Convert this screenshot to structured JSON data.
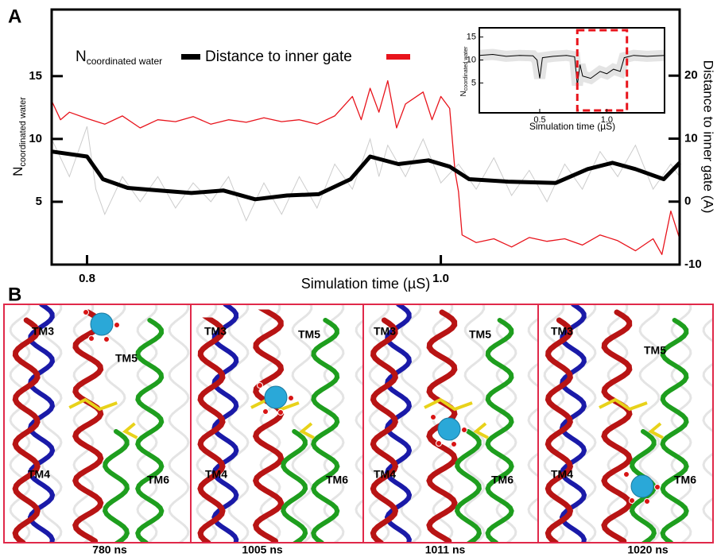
{
  "chart_data": {
    "type": "line",
    "panel_label": "A",
    "xlabel": "Simulation time (µS)",
    "ylabel": "N",
    "ylabel_sub": "coordinated water",
    "y2label": "Distance to inner gate (A)",
    "xlim": [
      0.78,
      1.135
    ],
    "xticks": [
      0.8,
      {
        "value": 1,
        "label": "1.0"
      }
    ],
    "ylim": [
      0,
      20.3
    ],
    "yticks": [
      5,
      10,
      15
    ],
    "y2lim": [
      -10,
      30.5
    ],
    "y2ticks": [
      -10,
      0,
      10,
      20
    ],
    "series": [
      {
        "name": "N",
        "name_sub": "coordinated water",
        "color": "#000000",
        "x": [
          0.78,
          0.8,
          0.809,
          0.823,
          0.841,
          0.859,
          0.877,
          0.895,
          0.913,
          0.931,
          0.949,
          0.96,
          0.976,
          0.993,
          1.005,
          1.016,
          1.038,
          1.065,
          1.083,
          1.097,
          1.11,
          1.126,
          1.135
        ],
        "values": [
          9.0,
          8.6,
          6.8,
          6.1,
          5.9,
          5.7,
          5.9,
          5.2,
          5.5,
          5.6,
          6.8,
          8.6,
          8.0,
          8.3,
          7.8,
          6.8,
          6.6,
          6.5,
          7.6,
          8.1,
          7.6,
          6.8,
          8.1
        ]
      },
      {
        "name": "Distance to inner gate",
        "color": "#e8141c",
        "axis": "y2",
        "x": [
          0.78,
          0.785,
          0.79,
          0.8,
          0.81,
          0.82,
          0.83,
          0.84,
          0.85,
          0.86,
          0.87,
          0.88,
          0.89,
          0.9,
          0.91,
          0.92,
          0.93,
          0.94,
          0.95,
          0.955,
          0.96,
          0.965,
          0.97,
          0.975,
          0.98,
          0.99,
          0.995,
          1.0,
          1.005,
          1.008,
          1.01,
          1.012,
          1.02,
          1.03,
          1.04,
          1.05,
          1.06,
          1.07,
          1.08,
          1.09,
          1.1,
          1.11,
          1.12,
          1.125,
          1.13,
          1.135
        ],
        "values": [
          16,
          13,
          14.2,
          13.2,
          12.3,
          13.6,
          11.7,
          13,
          12.7,
          13.5,
          12.3,
          13,
          12.6,
          13.3,
          12.7,
          13,
          12.3,
          13.6,
          16.7,
          13,
          18,
          14.2,
          19.2,
          11.7,
          15.5,
          17.4,
          13,
          16.7,
          14.8,
          4.8,
          1.6,
          -5.3,
          -6.5,
          -5.9,
          -7.2,
          -5.7,
          -6.3,
          -5.9,
          -6.9,
          -5.3,
          -6.2,
          -7.8,
          -5.9,
          -8.4,
          -1.5,
          -5.9
        ]
      }
    ],
    "raw": {
      "color": "#cccccc",
      "x": [
        0.78,
        0.79,
        0.8,
        0.805,
        0.81,
        0.82,
        0.83,
        0.84,
        0.85,
        0.86,
        0.87,
        0.88,
        0.89,
        0.9,
        0.91,
        0.92,
        0.93,
        0.94,
        0.95,
        0.96,
        0.965,
        0.97,
        0.98,
        0.99,
        1.0,
        1.01,
        1.02,
        1.03,
        1.04,
        1.05,
        1.06,
        1.07,
        1.08,
        1.09,
        1.1,
        1.11,
        1.12,
        1.13,
        1.135
      ],
      "values": [
        10,
        7,
        11,
        6,
        4,
        7,
        5,
        7,
        4.5,
        6.5,
        5,
        7,
        3.5,
        6.5,
        4,
        7,
        4.5,
        8,
        6,
        10,
        7,
        9.5,
        7,
        10,
        6.5,
        8,
        6,
        8.5,
        5.5,
        7.5,
        5,
        8,
        6,
        9,
        7,
        9.5,
        6,
        8,
        7
      ]
    },
    "inset": {
      "type": "line",
      "ylabel": "N",
      "ylabel_sub": "coordinated water",
      "xlabel": "Simulation time (µS)",
      "xlim": [
        0.05,
        1.43
      ],
      "xticks": [
        0.5,
        {
          "value": 1,
          "label": "1.0"
        }
      ],
      "ylim": [
        -1.5,
        17
      ],
      "yticks": [
        5,
        10,
        15
      ],
      "series": [
        {
          "color": "#000000",
          "x": [
            0.05,
            0.15,
            0.25,
            0.35,
            0.45,
            0.48,
            0.5,
            0.52,
            0.6,
            0.7,
            0.76,
            0.78,
            0.8,
            0.82,
            0.88,
            0.95,
            1.0,
            1.05,
            1.1,
            1.13,
            1.2,
            1.3,
            1.43
          ],
          "values": [
            11,
            11.2,
            10.8,
            11,
            10.9,
            10,
            6,
            10.5,
            10.8,
            11,
            10.7,
            4.5,
            9,
            6.5,
            6,
            7.5,
            7,
            8,
            7.5,
            10.5,
            11,
            10.8,
            11
          ]
        }
      ],
      "highlight": {
        "x": [
          0.78,
          1.15
        ],
        "color": "#e8141c"
      }
    }
  },
  "panel_b": {
    "label": "B",
    "frames": [
      {
        "time": "780 ns",
        "helices": [
          "TM3",
          "TM5",
          "TM4",
          "TM6"
        ]
      },
      {
        "time": "1005 ns",
        "helices": [
          "TM3",
          "TM5",
          "TM4",
          "TM6"
        ]
      },
      {
        "time": "1011 ns",
        "helices": [
          "TM3",
          "TM5",
          "TM4",
          "TM6"
        ]
      },
      {
        "time": "1020 ns",
        "helices": [
          "TM3",
          "TM5",
          "TM4",
          "TM6"
        ]
      }
    ]
  }
}
